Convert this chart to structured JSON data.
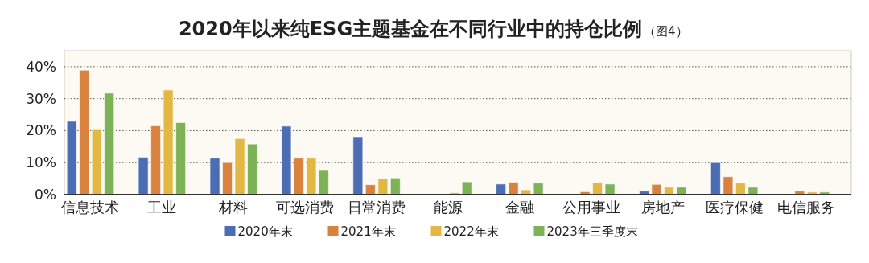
{
  "chart_data": {
    "type": "bar",
    "title": "2020年以来纯ESG主题基金在不同行业中的持仓比例",
    "subtitle": "（图4）",
    "categories": [
      "信息技术",
      "工业",
      "材料",
      "可选消费",
      "日常消费",
      "能源",
      "金融",
      "公用事业",
      "房地产",
      "医疗保健",
      "电信服务"
    ],
    "series": [
      {
        "name": "2020年末",
        "color": "#4a6db3",
        "values": [
          22.9,
          11.7,
          11.4,
          21.4,
          18.1,
          null,
          3.3,
          null,
          1.1,
          10.0,
          null
        ]
      },
      {
        "name": "2021年末",
        "color": "#d9823f",
        "values": [
          38.9,
          21.5,
          10.0,
          11.4,
          3.1,
          null,
          3.9,
          0.9,
          3.2,
          5.6,
          1.1
        ]
      },
      {
        "name": "2022年末",
        "color": "#e2b842",
        "values": [
          20.3,
          32.7,
          17.5,
          11.4,
          4.9,
          0.6,
          1.5,
          3.7,
          2.3,
          3.6,
          0.8
        ]
      },
      {
        "name": "2023年三季度末",
        "color": "#7db356",
        "values": [
          31.7,
          22.5,
          15.8,
          7.8,
          5.2,
          4.0,
          3.6,
          3.3,
          2.3,
          2.3,
          0.8
        ]
      }
    ],
    "ylim": [
      0,
      45
    ],
    "yticks": [
      {
        "value": 0,
        "label": "0%"
      },
      {
        "value": 10,
        "label": "10%"
      },
      {
        "value": 20,
        "label": "20%"
      },
      {
        "value": 30,
        "label": "30%"
      },
      {
        "value": 40,
        "label": "40%"
      }
    ],
    "grid": "y",
    "legend": "bottom"
  }
}
